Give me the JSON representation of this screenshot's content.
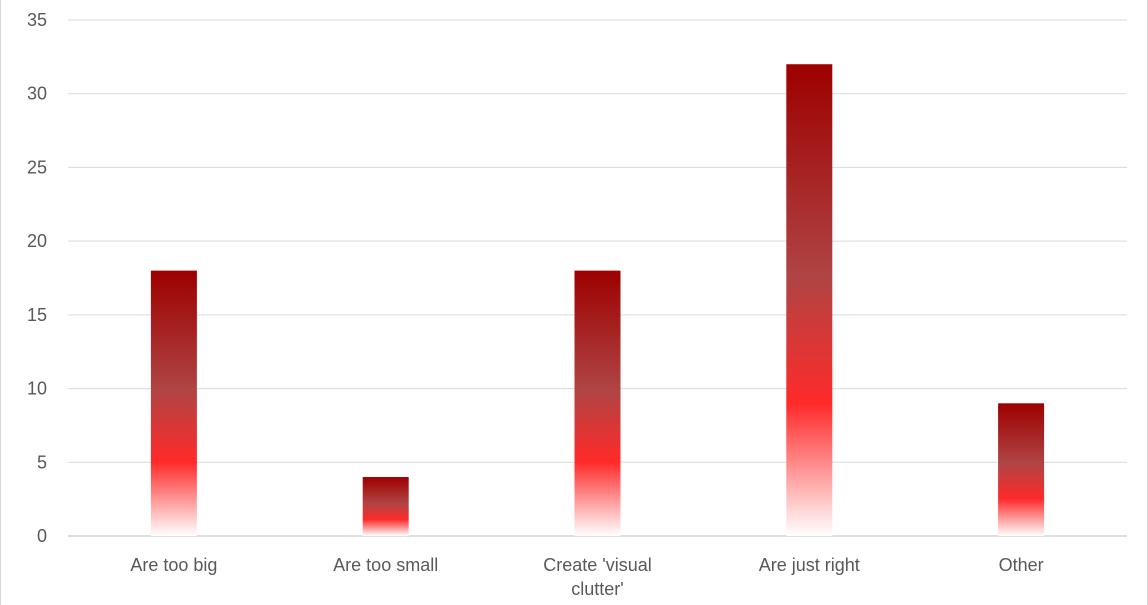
{
  "chart_data": {
    "type": "bar",
    "title": "",
    "xlabel": "",
    "ylabel": "",
    "categories": [
      [
        "Are too big"
      ],
      [
        "Are too small"
      ],
      [
        "Create 'visual",
        "clutter'"
      ],
      [
        "Are just right"
      ],
      [
        "Other"
      ]
    ],
    "values": [
      18,
      4,
      18,
      32,
      9
    ],
    "ylim": [
      0,
      35
    ],
    "yticks": [
      "0",
      "5",
      "10",
      "15",
      "20",
      "25",
      "30",
      "35"
    ],
    "grid": true,
    "legend": "none",
    "bar_colors": {
      "top": "#9e0000",
      "mid": "#b04444",
      "bright": "#ff2a2a",
      "bottom": "#ffffff"
    }
  }
}
